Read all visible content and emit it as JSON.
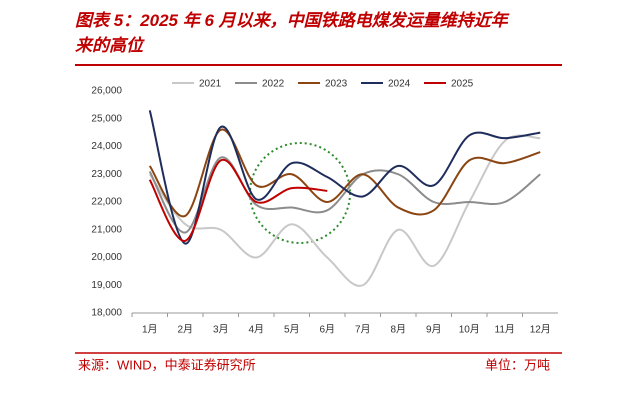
{
  "chart_data": {
    "type": "line",
    "title": "图表 5：2025 年 6 月以来，中国铁路电煤发运量维持近年来的高位",
    "source": "来源：WIND，中泰证券研究所",
    "unit": "单位：万吨",
    "categories": [
      "1月",
      "2月",
      "3月",
      "4月",
      "5月",
      "6月",
      "7月",
      "8月",
      "9月",
      "10月",
      "11月",
      "12月"
    ],
    "ylim": [
      18000,
      26000
    ],
    "yticks": [
      {
        "value": 18000,
        "label": "18,000"
      },
      {
        "value": 19000,
        "label": "19,000"
      },
      {
        "value": 20000,
        "label": "20,000"
      },
      {
        "value": 21000,
        "label": "21,000"
      },
      {
        "value": 22000,
        "label": "22,000"
      },
      {
        "value": 23000,
        "label": "23,000"
      },
      {
        "value": 24000,
        "label": "24,000"
      },
      {
        "value": 25000,
        "label": "25,000"
      },
      {
        "value": 26000,
        "label": "26,000"
      }
    ],
    "series": [
      {
        "name": "2021",
        "color": "#c8c8c8",
        "values": [
          23000,
          21200,
          21000,
          20000,
          21200,
          20000,
          19000,
          21000,
          19700,
          22000,
          24200,
          24300
        ]
      },
      {
        "name": "2022",
        "color": "#8c8c8c",
        "values": [
          23100,
          20900,
          23600,
          21900,
          21800,
          21700,
          23000,
          23000,
          22000,
          22000,
          22000,
          23000
        ]
      },
      {
        "name": "2023",
        "color": "#8b4513",
        "values": [
          23300,
          21500,
          24600,
          22600,
          23000,
          22000,
          23000,
          21800,
          21700,
          23500,
          23400,
          23800
        ]
      },
      {
        "name": "2024",
        "color": "#1f2d5c",
        "values": [
          25300,
          20500,
          24700,
          22100,
          23400,
          22900,
          22200,
          23300,
          22600,
          24400,
          24300,
          24500
        ]
      },
      {
        "name": "2025",
        "color": "#c00000",
        "values": [
          22800,
          20600,
          23500,
          22000,
          22500,
          22400,
          null,
          null,
          null,
          null,
          null,
          null
        ]
      }
    ]
  }
}
